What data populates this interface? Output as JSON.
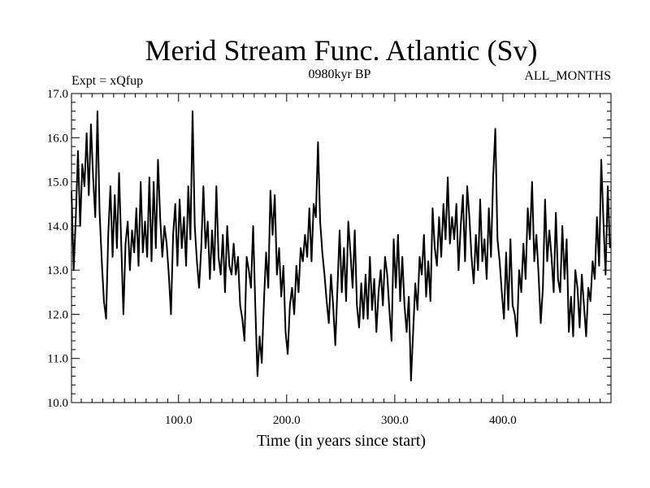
{
  "chart_data": {
    "type": "line",
    "title": "Merid Stream Func. Atlantic (Sv)",
    "experiment": "Expt = xQfup",
    "period": "0980kyr BP",
    "season": "ALL_MONTHS",
    "xlabel": "Time (in years since start)",
    "ylabel": "",
    "xlim": [
      1,
      500
    ],
    "ylim": [
      10.0,
      17.0
    ],
    "x_ticks": [
      {
        "value": 100,
        "label": "100.0"
      },
      {
        "value": 200,
        "label": "200.0"
      },
      {
        "value": 300,
        "label": "300.0"
      },
      {
        "value": 400,
        "label": "400.0"
      }
    ],
    "y_ticks": [
      {
        "value": 10,
        "label": "10.0"
      },
      {
        "value": 11,
        "label": "11.0"
      },
      {
        "value": 12,
        "label": "12.0"
      },
      {
        "value": 13,
        "label": "13.0"
      },
      {
        "value": 14,
        "label": "14.0"
      },
      {
        "value": 15,
        "label": "15.0"
      },
      {
        "value": 16,
        "label": "16.0"
      },
      {
        "value": 17,
        "label": "17.0"
      }
    ],
    "series": [
      {
        "name": "Merid Stream Func. Atlantic",
        "color": "#000000",
        "points": [
          [
            1,
            14.8
          ],
          [
            3,
            13.0
          ],
          [
            5,
            14.2
          ],
          [
            7,
            15.7
          ],
          [
            9,
            14.0
          ],
          [
            11,
            15.4
          ],
          [
            13,
            14.9
          ],
          [
            15,
            16.1
          ],
          [
            17,
            14.7
          ],
          [
            19,
            16.3
          ],
          [
            21,
            15.1
          ],
          [
            23,
            14.2
          ],
          [
            25,
            16.6
          ],
          [
            27,
            14.3
          ],
          [
            29,
            13.2
          ],
          [
            31,
            12.3
          ],
          [
            33,
            11.9
          ],
          [
            35,
            13.8
          ],
          [
            37,
            14.9
          ],
          [
            39,
            13.3
          ],
          [
            41,
            14.7
          ],
          [
            43,
            13.5
          ],
          [
            45,
            15.2
          ],
          [
            47,
            13.6
          ],
          [
            49,
            12.0
          ],
          [
            51,
            13.6
          ],
          [
            53,
            14.1
          ],
          [
            55,
            13.0
          ],
          [
            57,
            13.9
          ],
          [
            59,
            13.4
          ],
          [
            61,
            14.4
          ],
          [
            63,
            13.1
          ],
          [
            65,
            15.0
          ],
          [
            67,
            13.4
          ],
          [
            69,
            14.1
          ],
          [
            71,
            13.3
          ],
          [
            73,
            15.1
          ],
          [
            75,
            13.2
          ],
          [
            77,
            15.0
          ],
          [
            79,
            13.5
          ],
          [
            81,
            15.5
          ],
          [
            83,
            14.2
          ],
          [
            85,
            13.3
          ],
          [
            87,
            14.0
          ],
          [
            89,
            13.6
          ],
          [
            91,
            12.9
          ],
          [
            93,
            12.0
          ],
          [
            95,
            13.8
          ],
          [
            97,
            14.5
          ],
          [
            99,
            13.1
          ],
          [
            101,
            14.6
          ],
          [
            103,
            13.5
          ],
          [
            105,
            14.2
          ],
          [
            107,
            13.1
          ],
          [
            109,
            14.9
          ],
          [
            111,
            13.7
          ],
          [
            113,
            16.6
          ],
          [
            115,
            14.0
          ],
          [
            117,
            13.2
          ],
          [
            119,
            12.6
          ],
          [
            121,
            13.5
          ],
          [
            123,
            14.9
          ],
          [
            125,
            13.5
          ],
          [
            127,
            14.1
          ],
          [
            129,
            12.8
          ],
          [
            131,
            13.9
          ],
          [
            133,
            13.0
          ],
          [
            135,
            14.9
          ],
          [
            137,
            13.3
          ],
          [
            139,
            12.9
          ],
          [
            141,
            13.8
          ],
          [
            143,
            12.5
          ],
          [
            145,
            14.0
          ],
          [
            147,
            13.1
          ],
          [
            149,
            12.9
          ],
          [
            151,
            13.6
          ],
          [
            153,
            12.9
          ],
          [
            155,
            13.3
          ],
          [
            157,
            12.2
          ],
          [
            159,
            11.9
          ],
          [
            161,
            11.4
          ],
          [
            163,
            13.3
          ],
          [
            165,
            13.0
          ],
          [
            167,
            12.6
          ],
          [
            169,
            14.0
          ],
          [
            171,
            12.2
          ],
          [
            173,
            10.6
          ],
          [
            175,
            11.5
          ],
          [
            177,
            10.9
          ],
          [
            179,
            12.3
          ],
          [
            181,
            13.4
          ],
          [
            183,
            12.6
          ],
          [
            185,
            14.8
          ],
          [
            187,
            13.8
          ],
          [
            189,
            14.7
          ],
          [
            191,
            12.9
          ],
          [
            193,
            13.5
          ],
          [
            195,
            12.4
          ],
          [
            197,
            13.1
          ],
          [
            199,
            11.6
          ],
          [
            201,
            11.1
          ],
          [
            203,
            12.2
          ],
          [
            205,
            12.6
          ],
          [
            207,
            12.0
          ],
          [
            209,
            13.1
          ],
          [
            211,
            12.5
          ],
          [
            213,
            13.5
          ],
          [
            215,
            13.2
          ],
          [
            217,
            13.8
          ],
          [
            219,
            13.3
          ],
          [
            221,
            14.4
          ],
          [
            223,
            13.2
          ],
          [
            225,
            14.5
          ],
          [
            227,
            14.2
          ],
          [
            229,
            15.9
          ],
          [
            231,
            14.1
          ],
          [
            233,
            13.4
          ],
          [
            235,
            12.9
          ],
          [
            237,
            12.3
          ],
          [
            239,
            11.8
          ],
          [
            241,
            12.9
          ],
          [
            243,
            12.2
          ],
          [
            245,
            11.3
          ],
          [
            247,
            12.6
          ],
          [
            249,
            13.9
          ],
          [
            251,
            12.5
          ],
          [
            253,
            13.5
          ],
          [
            255,
            12.3
          ],
          [
            257,
            14.1
          ],
          [
            259,
            13.4
          ],
          [
            261,
            12.6
          ],
          [
            263,
            13.9
          ],
          [
            265,
            12.2
          ],
          [
            267,
            11.7
          ],
          [
            269,
            12.7
          ],
          [
            271,
            11.9
          ],
          [
            273,
            12.9
          ],
          [
            275,
            11.9
          ],
          [
            277,
            13.3
          ],
          [
            279,
            12.1
          ],
          [
            281,
            12.8
          ],
          [
            283,
            11.6
          ],
          [
            285,
            12.5
          ],
          [
            287,
            13.0
          ],
          [
            289,
            12.2
          ],
          [
            291,
            13.3
          ],
          [
            293,
            12.9
          ],
          [
            295,
            12.1
          ],
          [
            297,
            11.4
          ],
          [
            299,
            13.7
          ],
          [
            301,
            12.6
          ],
          [
            303,
            13.8
          ],
          [
            305,
            12.3
          ],
          [
            307,
            13.3
          ],
          [
            309,
            12.2
          ],
          [
            311,
            11.6
          ],
          [
            313,
            12.4
          ],
          [
            315,
            10.5
          ],
          [
            317,
            11.6
          ],
          [
            319,
            12.7
          ],
          [
            321,
            12.1
          ],
          [
            323,
            13.3
          ],
          [
            325,
            12.9
          ],
          [
            327,
            13.8
          ],
          [
            329,
            12.4
          ],
          [
            331,
            13.2
          ],
          [
            333,
            12.3
          ],
          [
            335,
            14.4
          ],
          [
            337,
            13.5
          ],
          [
            339,
            13.1
          ],
          [
            341,
            14.2
          ],
          [
            343,
            13.3
          ],
          [
            345,
            14.5
          ],
          [
            347,
            13.7
          ],
          [
            349,
            15.1
          ],
          [
            351,
            13.6
          ],
          [
            353,
            14.2
          ],
          [
            355,
            13.7
          ],
          [
            357,
            14.5
          ],
          [
            359,
            13.0
          ],
          [
            361,
            14.0
          ],
          [
            363,
            14.7
          ],
          [
            365,
            13.2
          ],
          [
            367,
            14.9
          ],
          [
            369,
            14.2
          ],
          [
            371,
            13.3
          ],
          [
            373,
            12.7
          ],
          [
            375,
            13.8
          ],
          [
            377,
            13.0
          ],
          [
            379,
            14.6
          ],
          [
            381,
            13.2
          ],
          [
            383,
            13.7
          ],
          [
            385,
            12.8
          ],
          [
            387,
            14.4
          ],
          [
            389,
            13.3
          ],
          [
            391,
            15.1
          ],
          [
            393,
            16.2
          ],
          [
            395,
            13.7
          ],
          [
            397,
            13.2
          ],
          [
            399,
            12.5
          ],
          [
            401,
            11.9
          ],
          [
            403,
            13.4
          ],
          [
            405,
            12.1
          ],
          [
            407,
            13.7
          ],
          [
            409,
            12.2
          ],
          [
            411,
            12.0
          ],
          [
            413,
            11.5
          ],
          [
            415,
            13.0
          ],
          [
            417,
            12.5
          ],
          [
            419,
            13.6
          ],
          [
            421,
            12.8
          ],
          [
            423,
            14.4
          ],
          [
            425,
            13.7
          ],
          [
            427,
            15.0
          ],
          [
            429,
            13.2
          ],
          [
            431,
            13.8
          ],
          [
            433,
            12.9
          ],
          [
            435,
            11.8
          ],
          [
            437,
            12.6
          ],
          [
            439,
            14.6
          ],
          [
            441,
            13.2
          ],
          [
            443,
            13.9
          ],
          [
            445,
            13.3
          ],
          [
            447,
            12.5
          ],
          [
            449,
            14.3
          ],
          [
            451,
            12.8
          ],
          [
            453,
            12.5
          ],
          [
            455,
            14.0
          ],
          [
            457,
            12.8
          ],
          [
            459,
            13.7
          ],
          [
            461,
            11.6
          ],
          [
            463,
            12.4
          ],
          [
            465,
            11.5
          ],
          [
            467,
            13.0
          ],
          [
            469,
            12.6
          ],
          [
            471,
            11.7
          ],
          [
            473,
            12.9
          ],
          [
            475,
            12.2
          ],
          [
            477,
            11.5
          ],
          [
            479,
            12.6
          ],
          [
            481,
            12.3
          ],
          [
            483,
            13.2
          ],
          [
            485,
            12.8
          ],
          [
            487,
            14.2
          ],
          [
            489,
            13.1
          ],
          [
            491,
            15.5
          ],
          [
            493,
            14.1
          ],
          [
            495,
            12.9
          ],
          [
            497,
            14.9
          ],
          [
            499,
            13.5
          ]
        ]
      }
    ]
  }
}
